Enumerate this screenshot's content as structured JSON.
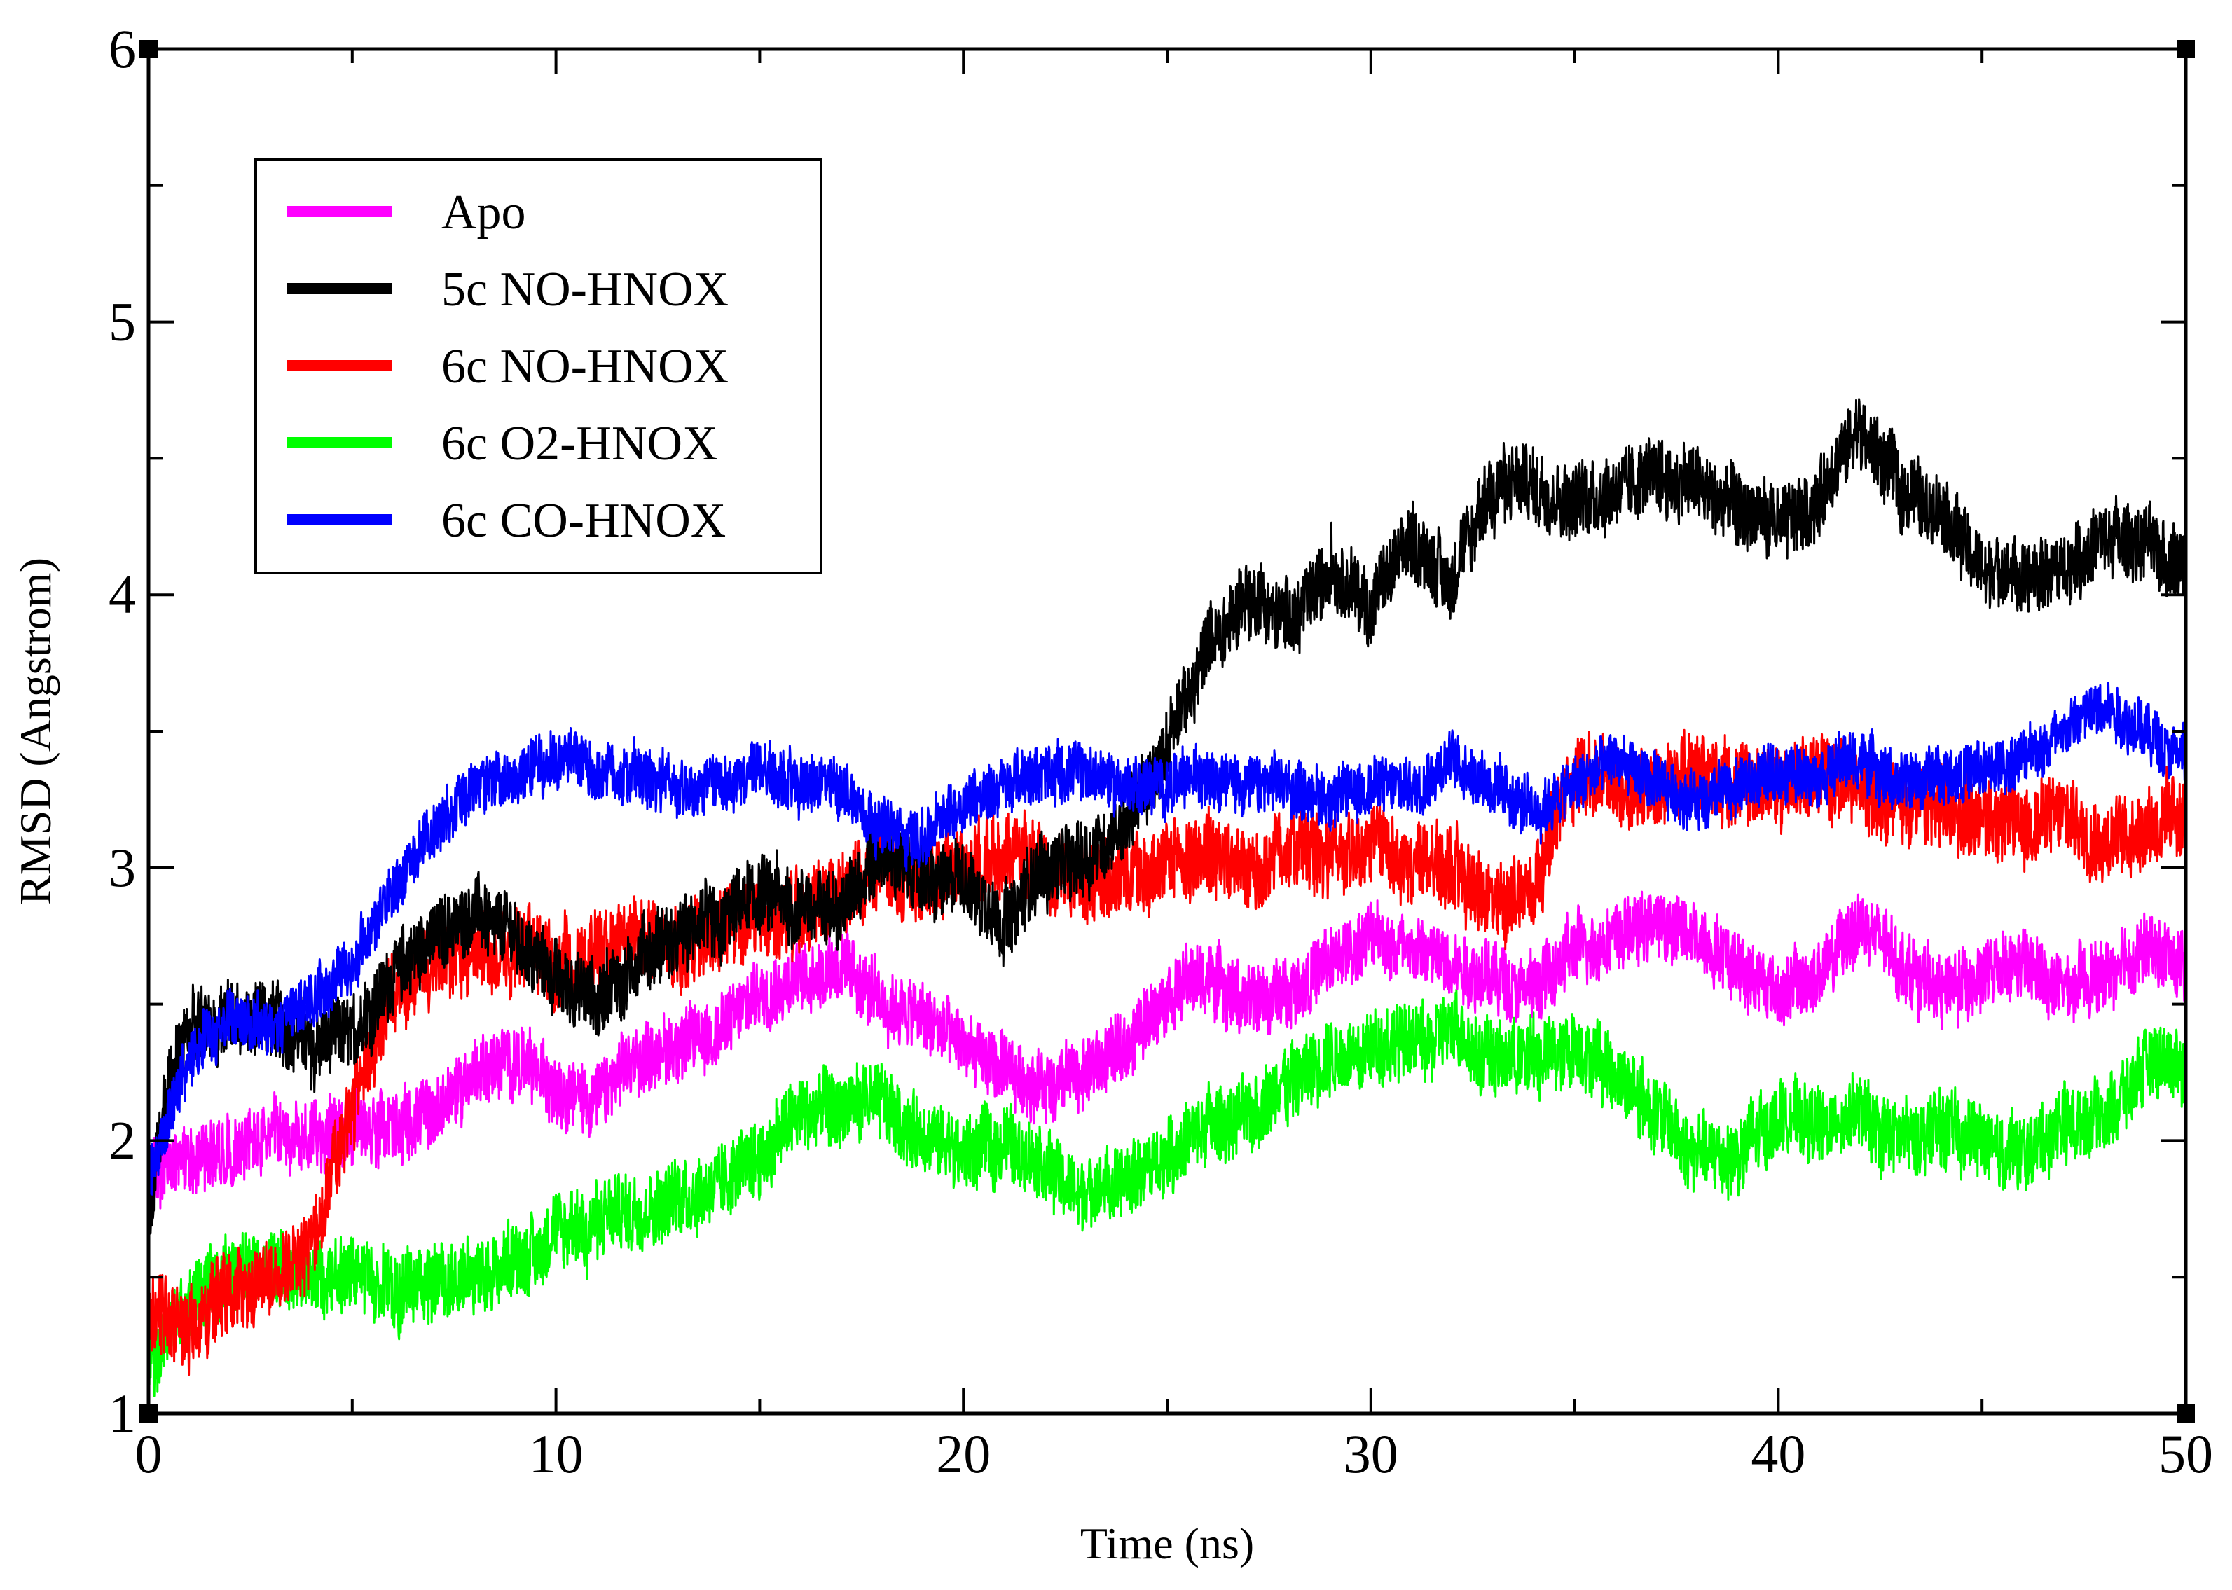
{
  "chart_data": {
    "type": "line",
    "title": "",
    "xlabel": "Time (ns)",
    "ylabel": "RMSD (Angstrom)",
    "xlim": [
      0,
      50
    ],
    "ylim": [
      1,
      6
    ],
    "xticks": [
      0,
      10,
      20,
      30,
      40,
      50
    ],
    "yticks": [
      1,
      2,
      3,
      4,
      5,
      6
    ],
    "x_minor_step": 5,
    "y_minor_step": 0.5,
    "grid": false,
    "legend_position": "top-left",
    "series": [
      {
        "name": "Apo",
        "color": "#ff00ff",
        "noise": 0.12,
        "points": [
          [
            0,
            1.85
          ],
          [
            1,
            1.95
          ],
          [
            2,
            1.97
          ],
          [
            3,
            2.0
          ],
          [
            4,
            2.0
          ],
          [
            5,
            2.05
          ],
          [
            6,
            2.05
          ],
          [
            7,
            2.1
          ],
          [
            8,
            2.25
          ],
          [
            9,
            2.3
          ],
          [
            10,
            2.2
          ],
          [
            11,
            2.15
          ],
          [
            12,
            2.3
          ],
          [
            13,
            2.35
          ],
          [
            14,
            2.4
          ],
          [
            15,
            2.55
          ],
          [
            16,
            2.6
          ],
          [
            17,
            2.65
          ],
          [
            18,
            2.5
          ],
          [
            19,
            2.45
          ],
          [
            20,
            2.35
          ],
          [
            21,
            2.25
          ],
          [
            22,
            2.2
          ],
          [
            23,
            2.25
          ],
          [
            24,
            2.35
          ],
          [
            25,
            2.55
          ],
          [
            26,
            2.6
          ],
          [
            27,
            2.5
          ],
          [
            28,
            2.55
          ],
          [
            29,
            2.65
          ],
          [
            30,
            2.75
          ],
          [
            31,
            2.7
          ],
          [
            32,
            2.65
          ],
          [
            33,
            2.6
          ],
          [
            34,
            2.55
          ],
          [
            35,
            2.7
          ],
          [
            36,
            2.75
          ],
          [
            37,
            2.8
          ],
          [
            38,
            2.75
          ],
          [
            39,
            2.65
          ],
          [
            40,
            2.55
          ],
          [
            41,
            2.6
          ],
          [
            42,
            2.8
          ],
          [
            43,
            2.65
          ],
          [
            44,
            2.55
          ],
          [
            45,
            2.6
          ],
          [
            46,
            2.65
          ],
          [
            47,
            2.55
          ],
          [
            48,
            2.6
          ],
          [
            49,
            2.7
          ],
          [
            50,
            2.65
          ]
        ]
      },
      {
        "name": "5c NO-HNOX",
        "color": "#000000",
        "noise": 0.13,
        "points": [
          [
            0,
            1.7
          ],
          [
            0.5,
            2.2
          ],
          [
            1,
            2.4
          ],
          [
            2,
            2.45
          ],
          [
            3,
            2.45
          ],
          [
            4,
            2.35
          ],
          [
            5,
            2.4
          ],
          [
            6,
            2.6
          ],
          [
            7,
            2.75
          ],
          [
            8,
            2.85
          ],
          [
            9,
            2.75
          ],
          [
            10,
            2.6
          ],
          [
            11,
            2.5
          ],
          [
            12,
            2.65
          ],
          [
            13,
            2.75
          ],
          [
            14,
            2.8
          ],
          [
            15,
            2.9
          ],
          [
            16,
            2.85
          ],
          [
            17,
            2.85
          ],
          [
            18,
            3.05
          ],
          [
            19,
            2.95
          ],
          [
            20,
            2.95
          ],
          [
            21,
            2.8
          ],
          [
            22,
            3.0
          ],
          [
            23,
            3.05
          ],
          [
            24,
            3.15
          ],
          [
            25,
            3.45
          ],
          [
            26,
            3.8
          ],
          [
            27,
            4.0
          ],
          [
            28,
            3.9
          ],
          [
            29,
            4.1
          ],
          [
            30,
            3.95
          ],
          [
            31,
            4.2
          ],
          [
            32,
            4.05
          ],
          [
            33,
            4.4
          ],
          [
            34,
            4.4
          ],
          [
            35,
            4.35
          ],
          [
            36,
            4.4
          ],
          [
            37,
            4.45
          ],
          [
            38,
            4.4
          ],
          [
            39,
            4.3
          ],
          [
            40,
            4.25
          ],
          [
            41,
            4.35
          ],
          [
            42,
            4.6
          ],
          [
            43,
            4.4
          ],
          [
            44,
            4.3
          ],
          [
            45,
            4.1
          ],
          [
            46,
            4.05
          ],
          [
            47,
            4.1
          ],
          [
            48,
            4.2
          ],
          [
            49,
            4.2
          ],
          [
            50,
            4.1
          ]
        ]
      },
      {
        "name": "6c NO-HNOX",
        "color": "#ff0000",
        "noise": 0.14,
        "points": [
          [
            0,
            1.4
          ],
          [
            1,
            1.3
          ],
          [
            2,
            1.45
          ],
          [
            3,
            1.5
          ],
          [
            4,
            1.6
          ],
          [
            5,
            2.15
          ],
          [
            6,
            2.55
          ],
          [
            7,
            2.65
          ],
          [
            8,
            2.7
          ],
          [
            9,
            2.7
          ],
          [
            10,
            2.65
          ],
          [
            11,
            2.7
          ],
          [
            12,
            2.75
          ],
          [
            13,
            2.7
          ],
          [
            14,
            2.75
          ],
          [
            15,
            2.8
          ],
          [
            16,
            2.85
          ],
          [
            17,
            2.9
          ],
          [
            18,
            3.0
          ],
          [
            19,
            2.95
          ],
          [
            20,
            3.0
          ],
          [
            21,
            3.05
          ],
          [
            22,
            3.0
          ],
          [
            23,
            2.95
          ],
          [
            24,
            3.0
          ],
          [
            25,
            3.0
          ],
          [
            26,
            3.05
          ],
          [
            27,
            2.95
          ],
          [
            28,
            3.1
          ],
          [
            29,
            3.05
          ],
          [
            30,
            3.1
          ],
          [
            31,
            3.0
          ],
          [
            32,
            3.0
          ],
          [
            33,
            2.85
          ],
          [
            34,
            2.95
          ],
          [
            35,
            3.35
          ],
          [
            36,
            3.3
          ],
          [
            37,
            3.3
          ],
          [
            38,
            3.35
          ],
          [
            39,
            3.3
          ],
          [
            40,
            3.3
          ],
          [
            41,
            3.35
          ],
          [
            42,
            3.3
          ],
          [
            43,
            3.25
          ],
          [
            44,
            3.2
          ],
          [
            45,
            3.2
          ],
          [
            46,
            3.15
          ],
          [
            47,
            3.2
          ],
          [
            48,
            3.1
          ],
          [
            49,
            3.15
          ],
          [
            50,
            3.2
          ]
        ]
      },
      {
        "name": "6c O2-HNOX",
        "color": "#00ff00",
        "noise": 0.13,
        "points": [
          [
            0,
            1.2
          ],
          [
            1,
            1.4
          ],
          [
            2,
            1.5
          ],
          [
            3,
            1.55
          ],
          [
            4,
            1.5
          ],
          [
            5,
            1.5
          ],
          [
            6,
            1.45
          ],
          [
            7,
            1.5
          ],
          [
            8,
            1.5
          ],
          [
            9,
            1.55
          ],
          [
            10,
            1.65
          ],
          [
            11,
            1.7
          ],
          [
            12,
            1.75
          ],
          [
            13,
            1.8
          ],
          [
            14,
            1.85
          ],
          [
            15,
            1.95
          ],
          [
            16,
            2.1
          ],
          [
            17,
            2.1
          ],
          [
            18,
            2.15
          ],
          [
            19,
            2.0
          ],
          [
            20,
            1.95
          ],
          [
            21,
            2.0
          ],
          [
            22,
            1.9
          ],
          [
            23,
            1.8
          ],
          [
            24,
            1.85
          ],
          [
            25,
            1.95
          ],
          [
            26,
            2.05
          ],
          [
            27,
            2.1
          ],
          [
            28,
            2.2
          ],
          [
            29,
            2.3
          ],
          [
            30,
            2.35
          ],
          [
            31,
            2.35
          ],
          [
            32,
            2.4
          ],
          [
            33,
            2.3
          ],
          [
            34,
            2.3
          ],
          [
            35,
            2.35
          ],
          [
            36,
            2.25
          ],
          [
            37,
            2.1
          ],
          [
            38,
            1.95
          ],
          [
            39,
            1.95
          ],
          [
            40,
            2.1
          ],
          [
            41,
            2.05
          ],
          [
            42,
            2.1
          ],
          [
            43,
            2.0
          ],
          [
            44,
            2.05
          ],
          [
            45,
            2.0
          ],
          [
            46,
            1.95
          ],
          [
            47,
            2.05
          ],
          [
            48,
            2.1
          ],
          [
            49,
            2.25
          ],
          [
            50,
            2.3
          ]
        ]
      },
      {
        "name": "6c CO-HNOX",
        "color": "#0000ff",
        "noise": 0.1,
        "points": [
          [
            0,
            1.85
          ],
          [
            1,
            2.3
          ],
          [
            2,
            2.45
          ],
          [
            3,
            2.4
          ],
          [
            4,
            2.5
          ],
          [
            5,
            2.65
          ],
          [
            6,
            2.9
          ],
          [
            7,
            3.15
          ],
          [
            8,
            3.3
          ],
          [
            9,
            3.35
          ],
          [
            10,
            3.4
          ],
          [
            11,
            3.35
          ],
          [
            12,
            3.35
          ],
          [
            13,
            3.3
          ],
          [
            14,
            3.3
          ],
          [
            15,
            3.35
          ],
          [
            16,
            3.3
          ],
          [
            17,
            3.3
          ],
          [
            18,
            3.15
          ],
          [
            19,
            3.1
          ],
          [
            20,
            3.25
          ],
          [
            21,
            3.3
          ],
          [
            22,
            3.35
          ],
          [
            23,
            3.35
          ],
          [
            24,
            3.3
          ],
          [
            25,
            3.3
          ],
          [
            26,
            3.35
          ],
          [
            27,
            3.3
          ],
          [
            28,
            3.3
          ],
          [
            29,
            3.25
          ],
          [
            30,
            3.3
          ],
          [
            31,
            3.3
          ],
          [
            32,
            3.4
          ],
          [
            33,
            3.3
          ],
          [
            34,
            3.2
          ],
          [
            35,
            3.3
          ],
          [
            36,
            3.4
          ],
          [
            37,
            3.3
          ],
          [
            38,
            3.25
          ],
          [
            39,
            3.3
          ],
          [
            40,
            3.35
          ],
          [
            41,
            3.35
          ],
          [
            42,
            3.4
          ],
          [
            43,
            3.3
          ],
          [
            44,
            3.35
          ],
          [
            45,
            3.35
          ],
          [
            46,
            3.4
          ],
          [
            47,
            3.5
          ],
          [
            48,
            3.6
          ],
          [
            49,
            3.5
          ],
          [
            50,
            3.4
          ]
        ]
      }
    ]
  }
}
